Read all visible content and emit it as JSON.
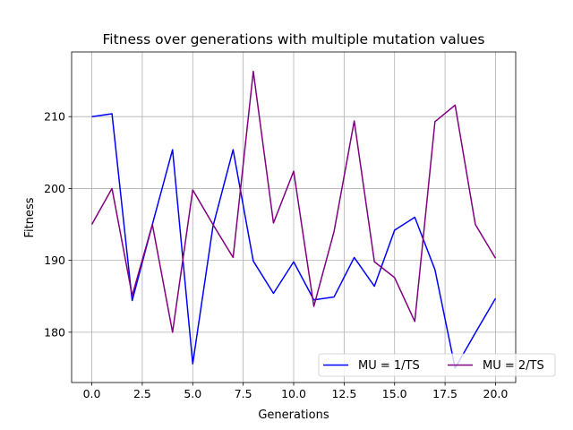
{
  "chart_data": {
    "type": "line",
    "title": "Fitness over generations with multiple mutation values",
    "xlabel": "Generations",
    "ylabel": "Fitness",
    "xlim": [
      -1.0,
      21.0
    ],
    "ylim": [
      173.0,
      219.0
    ],
    "x_ticks": [
      0.0,
      2.5,
      5.0,
      7.5,
      10.0,
      12.5,
      15.0,
      17.5,
      20.0
    ],
    "x_tick_labels": [
      "0.0",
      "2.5",
      "5.0",
      "7.5",
      "10.0",
      "12.5",
      "15.0",
      "17.5",
      "20.0"
    ],
    "y_ticks": [
      180,
      190,
      200,
      210
    ],
    "y_tick_labels": [
      "180",
      "190",
      "200",
      "210"
    ],
    "grid": true,
    "legend_position": "lower-right",
    "x": [
      0,
      1,
      2,
      3,
      4,
      5,
      6,
      7,
      8,
      9,
      10,
      11,
      12,
      13,
      14,
      15,
      16,
      17,
      18,
      19,
      20
    ],
    "series": [
      {
        "name": "MU = 1/TS",
        "color": "#0000ff",
        "values": [
          210.0,
          210.4,
          184.4,
          195.0,
          205.4,
          175.6,
          194.7,
          205.4,
          189.9,
          185.4,
          189.8,
          184.5,
          184.9,
          190.4,
          186.4,
          194.2,
          196.0,
          188.7,
          175.0,
          179.9,
          184.7
        ]
      },
      {
        "name": "MU = 2/TS",
        "color": "#800080",
        "values": [
          195.0,
          200.0,
          185.1,
          195.0,
          180.0,
          199.8,
          195.0,
          190.4,
          216.3,
          195.2,
          202.4,
          183.6,
          194.0,
          209.4,
          189.8,
          187.6,
          181.5,
          209.3,
          211.6,
          195.0,
          190.3
        ]
      }
    ]
  }
}
